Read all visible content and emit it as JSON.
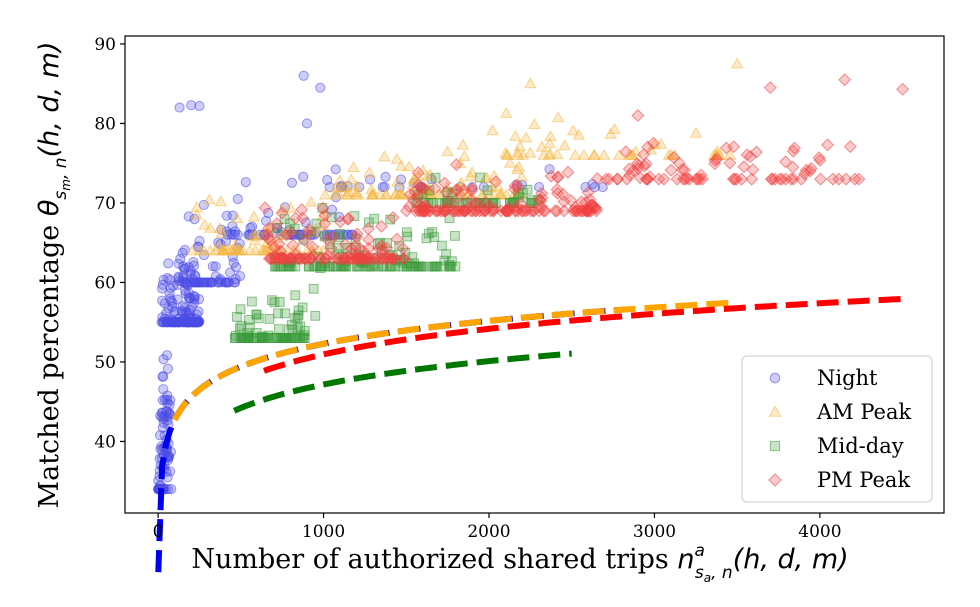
{
  "chart_data": {
    "type": "scatter",
    "xlabel_text": "Number of authorized shared trips",
    "xlabel_symbol": "n",
    "xlabel_sup": "a",
    "xlabel_sub": "s",
    "xlabel_subsub": "a",
    "xlabel_sub_tail": ", n",
    "xlabel_args": "(h, d, m)",
    "ylabel_text": "Matched percentage",
    "ylabel_symbol": "θ",
    "ylabel_sub": "s",
    "ylabel_subsub": "m",
    "ylabel_sub_tail": ", n",
    "ylabel_args": "(h, d, m)",
    "xlim": [
      -200,
      4750
    ],
    "ylim": [
      31,
      91
    ],
    "xticks": [
      0,
      1000,
      2000,
      3000,
      4000
    ],
    "yticks": [
      40,
      50,
      60,
      70,
      80,
      90
    ],
    "legend_position": "lower-right",
    "series": [
      {
        "name": "Night",
        "marker": "circle",
        "color": "#4a4ae6",
        "fit_color": "#0000ee",
        "fit": {
          "a": 23.57,
          "b": 4.157,
          "x_range": [
            0,
            2780
          ]
        },
        "clusters": [
          {
            "x": [
              0,
              80
            ],
            "y": [
              34,
              60
            ],
            "n": 80
          },
          {
            "x": [
              20,
              250
            ],
            "y": [
              55,
              78
            ],
            "n": 150
          },
          {
            "x": [
              150,
              500
            ],
            "y": [
              60,
              80
            ],
            "n": 60
          },
          {
            "x": [
              400,
              1200
            ],
            "y": [
              66,
              82
            ],
            "n": 60
          },
          {
            "x": [
              1000,
              2700
            ],
            "y": [
              72,
              82
            ],
            "n": 30
          }
        ],
        "points": [
          [
            130,
            82
          ],
          [
            200,
            82.3
          ],
          [
            250,
            82.2
          ],
          [
            880,
            86
          ],
          [
            980,
            84.5
          ],
          [
            900,
            80
          ],
          [
            15,
            37
          ],
          [
            20,
            34
          ]
        ]
      },
      {
        "name": "AM Peak",
        "marker": "triangle",
        "color": "#f5b642",
        "fit_color": "#ffa500",
        "fit": {
          "a": 23.57,
          "b": 4.157,
          "x_range": [
            100,
            3500
          ]
        },
        "clusters": [
          {
            "x": [
              200,
              1000
            ],
            "y": [
              64,
              80
            ],
            "n": 70
          },
          {
            "x": [
              1000,
              2200
            ],
            "y": [
              71,
              84
            ],
            "n": 90
          },
          {
            "x": [
              2000,
              3500
            ],
            "y": [
              76,
              87
            ],
            "n": 50
          }
        ],
        "points": [
          [
            2250,
            85
          ],
          [
            3500,
            87.5
          ]
        ]
      },
      {
        "name": "Mid-day",
        "marker": "square",
        "color": "#3a9a3a",
        "fit_color": "#007800",
        "fit": {
          "a": 17.8,
          "b": 4.25,
          "x_range": [
            460,
            2500
          ]
        },
        "clusters": [
          {
            "x": [
              460,
              900
            ],
            "y": [
              53,
              66
            ],
            "n": 80
          },
          {
            "x": [
              700,
              1800
            ],
            "y": [
              62,
              78
            ],
            "n": 130
          },
          {
            "x": [
              1500,
              2300
            ],
            "y": [
              70,
              80
            ],
            "n": 50
          }
        ],
        "points": [
          [
            470,
            53.3
          ],
          [
            950,
            55.8
          ],
          [
            940,
            59.2
          ],
          [
            980,
            61.8
          ]
        ]
      },
      {
        "name": "PM Peak",
        "marker": "diamond",
        "color": "#f04040",
        "fit_color": "#ff0000",
        "fit": {
          "a": 18.9,
          "b": 4.64,
          "x_range": [
            640,
            4500
          ]
        },
        "clusters": [
          {
            "x": [
              640,
              1500
            ],
            "y": [
              63,
              78
            ],
            "n": 120
          },
          {
            "x": [
              1500,
              2700
            ],
            "y": [
              69,
              81
            ],
            "n": 150
          },
          {
            "x": [
              2700,
              4300
            ],
            "y": [
              73,
              84
            ],
            "n": 80
          }
        ],
        "points": [
          [
            4500,
            84.3
          ],
          [
            3700,
            84.5
          ],
          [
            3150,
            75
          ],
          [
            2850,
            73.5
          ],
          [
            4150,
            85.5
          ],
          [
            2900,
            81
          ]
        ]
      }
    ]
  }
}
